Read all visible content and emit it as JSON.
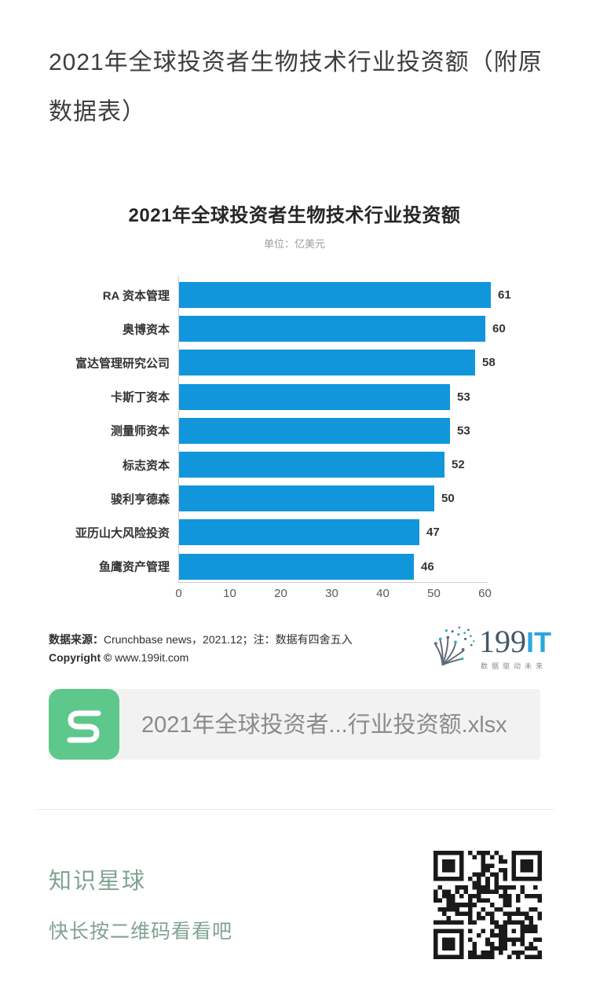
{
  "article": {
    "title": "2021年全球投资者生物技术行业投资额（附原数据表）"
  },
  "chart_data": {
    "type": "bar",
    "orientation": "horizontal",
    "title": "2021年全球投资者生物技术行业投资额",
    "subtitle": "单位：亿美元",
    "categories": [
      "RA 资本管理",
      "奥博资本",
      "富达管理研究公司",
      "卡斯丁资本",
      "测量师资本",
      "标志资本",
      "骏利亨德森",
      "亚历山大风险投资",
      "鱼鹰资产管理"
    ],
    "values": [
      61,
      60,
      58,
      53,
      53,
      52,
      50,
      47,
      46
    ],
    "xlim": [
      0,
      60
    ],
    "x_ticks": [
      0,
      10,
      20,
      30,
      40,
      50,
      60
    ],
    "grid": false,
    "value_labels": true,
    "bar_color": "#1296db",
    "legend": "none"
  },
  "source": {
    "line1_label": "数据来源：",
    "line1_text": "Crunchbase news，2021.12；注：数据有四舍五入",
    "line2_label": "Copyright © ",
    "line2_text": "www.199it.com"
  },
  "logo": {
    "name_part1": "199",
    "name_part2": "IT",
    "tagline": "数据驱动未来",
    "icon": "dandelion-icon",
    "color_dark": "#45566a",
    "color_blue": "#2aa7dd",
    "dot_teal": "#3ab0c0",
    "dot_gray": "#5f6b76"
  },
  "attachment": {
    "file_name": "2021年全球投资者...行业投资额.xlsx",
    "icon": "spreadsheet-s-icon",
    "icon_color": "#5ec88c"
  },
  "promo": {
    "title": "知识星球",
    "subtitle": "快长按二维码看看吧",
    "text_color": "#81a391",
    "qr_color": "#1a1a1a"
  }
}
